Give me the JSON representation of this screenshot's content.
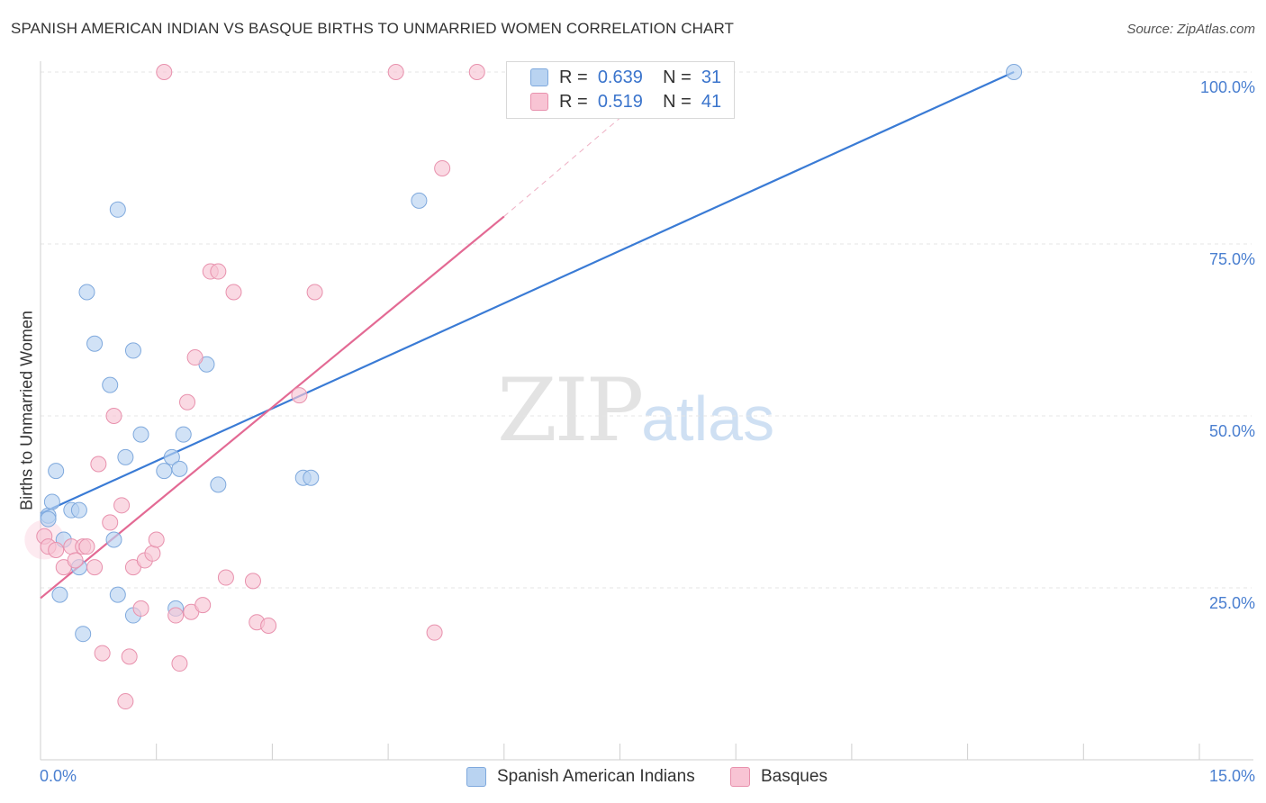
{
  "title": "SPANISH AMERICAN INDIAN VS BASQUE BIRTHS TO UNMARRIED WOMEN CORRELATION CHART",
  "source": "Source: ZipAtlas.com",
  "watermark": {
    "zip": "ZIP",
    "atlas": "atlas"
  },
  "stats": [
    {
      "r_label": "R =",
      "r_value": "0.639",
      "n_label": "N =",
      "n_value": "31",
      "color": "#b9d3f1",
      "border": "#7fa9dd"
    },
    {
      "r_label": "R =",
      "r_value": "0.519",
      "n_label": "N =",
      "n_value": "41",
      "color": "#f8c4d4",
      "border": "#e891ad"
    }
  ],
  "legend": [
    "Spanish American Indians",
    "Basques"
  ],
  "chart_data": {
    "type": "scatter",
    "title": "SPANISH AMERICAN INDIAN VS BASQUE BIRTHS TO UNMARRIED WOMEN CORRELATION CHART",
    "xlabel": "",
    "ylabel": "Births to Unmarried Women",
    "xlim": [
      0,
      15
    ],
    "ylim": [
      0,
      100
    ],
    "x_tick_labels": [
      "0.0%",
      "15.0%"
    ],
    "y_tick_labels": [
      "25.0%",
      "50.0%",
      "75.0%",
      "100.0%"
    ],
    "y_ticks": [
      25,
      50,
      75,
      100
    ],
    "series": [
      {
        "name": "Spanish American Indians",
        "color": "#3a7bd5",
        "fill": "#b9d3f1",
        "stroke": "#7fa9dd",
        "points": [
          [
            0.1,
            35.5
          ],
          [
            0.1,
            35.0
          ],
          [
            0.15,
            37.5
          ],
          [
            0.2,
            42
          ],
          [
            0.25,
            24
          ],
          [
            0.3,
            32
          ],
          [
            0.4,
            36.3
          ],
          [
            0.5,
            36.3
          ],
          [
            0.5,
            28
          ],
          [
            0.55,
            18.3
          ],
          [
            0.6,
            68
          ],
          [
            0.7,
            60.5
          ],
          [
            0.9,
            54.5
          ],
          [
            0.95,
            32
          ],
          [
            1.0,
            24
          ],
          [
            1.0,
            80
          ],
          [
            1.1,
            44
          ],
          [
            1.2,
            21
          ],
          [
            1.2,
            59.5
          ],
          [
            1.3,
            47.3
          ],
          [
            1.6,
            42
          ],
          [
            1.7,
            44
          ],
          [
            1.75,
            22
          ],
          [
            1.8,
            42.3
          ],
          [
            1.85,
            47.3
          ],
          [
            2.15,
            57.5
          ],
          [
            2.3,
            40
          ],
          [
            3.4,
            41
          ],
          [
            3.5,
            41
          ],
          [
            4.9,
            81.3
          ],
          [
            12.6,
            100
          ]
        ],
        "trend": {
          "x": [
            0,
            12.6
          ],
          "y": [
            35.8,
            100
          ]
        }
      },
      {
        "name": "Basques",
        "color": "#e36a94",
        "fill": "#f8c4d4",
        "stroke": "#e891ad",
        "points": [
          [
            0.05,
            32.5
          ],
          [
            0.1,
            31
          ],
          [
            0.2,
            30.5
          ],
          [
            0.3,
            28
          ],
          [
            0.4,
            31
          ],
          [
            0.45,
            29
          ],
          [
            0.55,
            31
          ],
          [
            0.6,
            31
          ],
          [
            0.7,
            28
          ],
          [
            0.75,
            43
          ],
          [
            0.8,
            15.5
          ],
          [
            0.9,
            34.5
          ],
          [
            0.95,
            50
          ],
          [
            1.05,
            37
          ],
          [
            1.1,
            8.5
          ],
          [
            1.15,
            15
          ],
          [
            1.2,
            28
          ],
          [
            1.3,
            22
          ],
          [
            1.35,
            29
          ],
          [
            1.45,
            30
          ],
          [
            1.5,
            32
          ],
          [
            1.6,
            100
          ],
          [
            1.75,
            21
          ],
          [
            1.8,
            14
          ],
          [
            1.9,
            52
          ],
          [
            1.95,
            21.5
          ],
          [
            2.0,
            58.5
          ],
          [
            2.1,
            22.5
          ],
          [
            2.2,
            71
          ],
          [
            2.3,
            71
          ],
          [
            2.4,
            26.5
          ],
          [
            2.5,
            68
          ],
          [
            2.75,
            26
          ],
          [
            2.8,
            20
          ],
          [
            2.95,
            19.5
          ],
          [
            3.35,
            53
          ],
          [
            3.55,
            68
          ],
          [
            4.6,
            100
          ],
          [
            5.1,
            18.5
          ],
          [
            5.2,
            86
          ],
          [
            5.65,
            100
          ]
        ],
        "trend": {
          "x": [
            0,
            6
          ],
          "y": [
            23.5,
            79
          ]
        },
        "trend_extension": {
          "x": [
            6,
            8.2
          ],
          "y": [
            79,
            100
          ]
        }
      }
    ]
  }
}
